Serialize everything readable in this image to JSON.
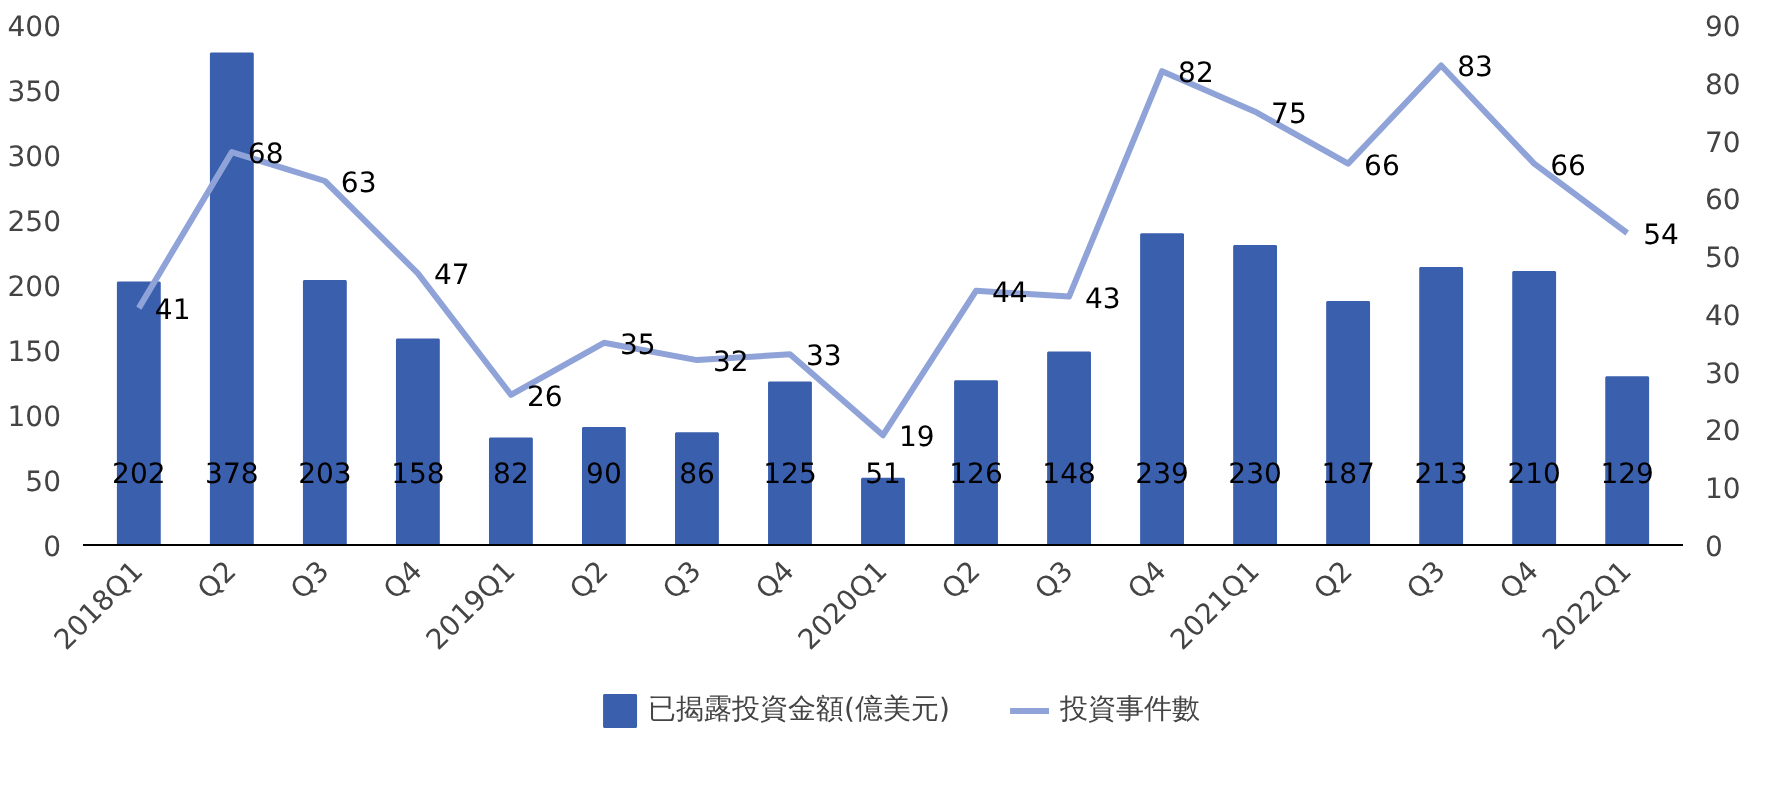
{
  "chart_data": {
    "type": "bar",
    "categories": [
      "2018Q1",
      "Q2",
      "Q3",
      "Q4",
      "2019Q1",
      "Q2",
      "Q3",
      "Q4",
      "2020Q1",
      "Q2",
      "Q3",
      "Q4",
      "2021Q1",
      "Q2",
      "Q3",
      "Q4",
      "2022Q1"
    ],
    "series": [
      {
        "name": "已揭露投資金額(億美元)",
        "color": "#3a5fad",
        "values": [
          202,
          378,
          203,
          158,
          82,
          90,
          86,
          125,
          51,
          126,
          148,
          239,
          230,
          187,
          213,
          210,
          129
        ]
      },
      {
        "name": "投資事件數",
        "type": "line",
        "axis": "y2",
        "color": "#8fa3d8",
        "values": [
          41,
          68,
          63,
          47,
          26,
          35,
          32,
          33,
          19,
          44,
          43,
          82,
          75,
          66,
          83,
          66,
          54
        ]
      }
    ],
    "ylim": [
      0,
      400
    ],
    "yticks": [
      0,
      50,
      100,
      150,
      200,
      250,
      300,
      350,
      400
    ],
    "y2lim": [
      0,
      90
    ],
    "y2ticks": [
      0,
      10,
      20,
      30,
      40,
      50,
      60,
      70,
      80,
      90
    ],
    "grid": false,
    "legend": "bottom",
    "data_labels": true,
    "marker": "none",
    "line_style": "solid"
  }
}
